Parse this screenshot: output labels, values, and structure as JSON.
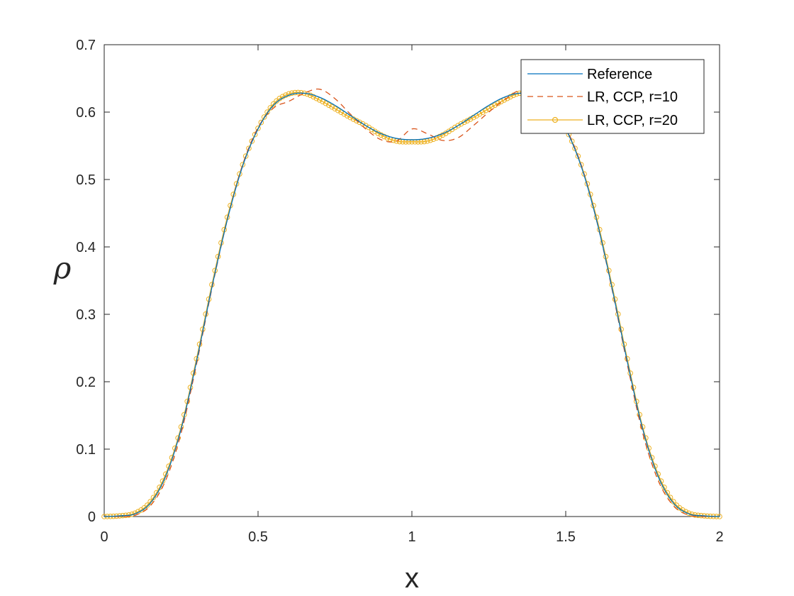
{
  "chart_data": {
    "type": "line",
    "title": "",
    "xlabel": "x",
    "ylabel": "ρ",
    "xlim": [
      0,
      2
    ],
    "ylim": [
      0,
      0.7
    ],
    "xticks": [
      0,
      0.5,
      1,
      1.5,
      2
    ],
    "xtick_labels": [
      "0",
      "0.5",
      "1",
      "1.5",
      "2"
    ],
    "yticks": [
      0,
      0.1,
      0.2,
      0.3,
      0.4,
      0.5,
      0.6,
      0.7
    ],
    "ytick_labels": [
      "0",
      "0.1",
      "0.2",
      "0.3",
      "0.4",
      "0.5",
      "0.6",
      "0.7"
    ],
    "grid": false,
    "legend_position": "top-right",
    "series": [
      {
        "name": "Reference",
        "style": "solid",
        "color": "#0072BD",
        "x": [
          0,
          0.05,
          0.1,
          0.15,
          0.2,
          0.25,
          0.3,
          0.35,
          0.4,
          0.45,
          0.5,
          0.55,
          0.6,
          0.65,
          0.7,
          0.75,
          0.8,
          0.85,
          0.9,
          0.95,
          1.0,
          1.05,
          1.1,
          1.15,
          1.2,
          1.25,
          1.3,
          1.35,
          1.4,
          1.45,
          1.5,
          1.55,
          1.6,
          1.65,
          1.7,
          1.75,
          1.8,
          1.85,
          1.9,
          1.95,
          2.0
        ],
        "y": [
          0,
          0.001,
          0.004,
          0.02,
          0.06,
          0.13,
          0.23,
          0.34,
          0.44,
          0.52,
          0.575,
          0.61,
          0.625,
          0.628,
          0.622,
          0.61,
          0.595,
          0.58,
          0.568,
          0.561,
          0.559,
          0.561,
          0.568,
          0.58,
          0.595,
          0.61,
          0.622,
          0.628,
          0.625,
          0.61,
          0.575,
          0.52,
          0.44,
          0.34,
          0.23,
          0.13,
          0.06,
          0.02,
          0.004,
          0.001,
          0
        ]
      },
      {
        "name": "LR, CCP, r=10",
        "style": "dashed",
        "color": "#D95319",
        "x": [
          0,
          0.05,
          0.1,
          0.15,
          0.2,
          0.25,
          0.3,
          0.35,
          0.4,
          0.45,
          0.5,
          0.55,
          0.6,
          0.65,
          0.7,
          0.75,
          0.8,
          0.85,
          0.9,
          0.95,
          1.0,
          1.05,
          1.1,
          1.15,
          1.2,
          1.25,
          1.3,
          1.35,
          1.4,
          1.45,
          1.5,
          1.55,
          1.6,
          1.65,
          1.7,
          1.75,
          1.8,
          1.85,
          1.9,
          1.95,
          2.0
        ],
        "y": [
          0,
          0.0,
          0.002,
          0.016,
          0.054,
          0.124,
          0.226,
          0.338,
          0.44,
          0.522,
          0.577,
          0.606,
          0.616,
          0.628,
          0.634,
          0.62,
          0.597,
          0.575,
          0.559,
          0.557,
          0.575,
          0.568,
          0.558,
          0.562,
          0.58,
          0.6,
          0.618,
          0.632,
          0.628,
          0.612,
          0.577,
          0.522,
          0.44,
          0.338,
          0.226,
          0.124,
          0.054,
          0.016,
          0.002,
          0.0,
          0
        ]
      },
      {
        "name": "LR, CCP, r=20",
        "style": "solid-circle-markers",
        "color": "#EDB120",
        "x": [
          0,
          0.05,
          0.1,
          0.15,
          0.2,
          0.25,
          0.3,
          0.35,
          0.4,
          0.45,
          0.5,
          0.55,
          0.6,
          0.65,
          0.7,
          0.75,
          0.8,
          0.85,
          0.9,
          0.95,
          1.0,
          1.05,
          1.1,
          1.15,
          1.2,
          1.25,
          1.3,
          1.35,
          1.4,
          1.45,
          1.5,
          1.55,
          1.6,
          1.65,
          1.7,
          1.75,
          1.8,
          1.85,
          1.9,
          1.95,
          2.0
        ],
        "y": [
          0,
          0.001,
          0.005,
          0.022,
          0.063,
          0.133,
          0.234,
          0.344,
          0.444,
          0.522,
          0.576,
          0.612,
          0.627,
          0.628,
          0.618,
          0.605,
          0.592,
          0.58,
          0.566,
          0.557,
          0.556,
          0.557,
          0.566,
          0.58,
          0.592,
          0.605,
          0.618,
          0.628,
          0.627,
          0.612,
          0.576,
          0.522,
          0.444,
          0.344,
          0.234,
          0.133,
          0.063,
          0.022,
          0.005,
          0.001,
          0
        ]
      }
    ]
  }
}
